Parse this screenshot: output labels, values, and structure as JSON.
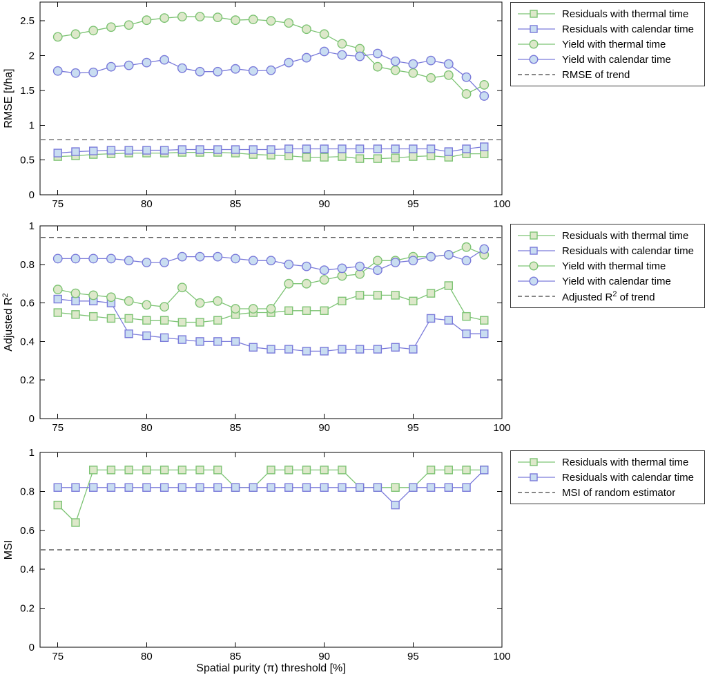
{
  "figure": {
    "xlabel": "Spatial purity (π) threshold [%]",
    "background": "#ffffff",
    "axis_color": "#000000",
    "colors": {
      "green_line": "#7cc373",
      "blue_line": "#7a7ada",
      "green_marker_fill": "#dde8ca",
      "blue_marker_fill": "#c9ddf1",
      "trend_dash": "#3f3f3f"
    }
  },
  "chart_data": [
    {
      "type": "line",
      "name": "rmse",
      "ylabel": "RMSE [t/ha]",
      "xlabel": "",
      "xlim": [
        74,
        100
      ],
      "ylim": [
        0,
        2.77
      ],
      "xticks": [
        75,
        80,
        85,
        90,
        95,
        100
      ],
      "yticks": [
        0,
        0.5,
        1,
        1.5,
        2,
        2.5
      ],
      "grid": false,
      "legend_position": "outside-right",
      "x": [
        75,
        76,
        77,
        78,
        79,
        80,
        81,
        82,
        83,
        84,
        85,
        86,
        87,
        88,
        89,
        90,
        91,
        92,
        93,
        94,
        95,
        96,
        97,
        98,
        99
      ],
      "series": [
        {
          "name": "Residuals with thermal time",
          "color": "green",
          "marker": "square",
          "values": [
            0.55,
            0.56,
            0.58,
            0.59,
            0.6,
            0.6,
            0.6,
            0.61,
            0.61,
            0.61,
            0.6,
            0.58,
            0.57,
            0.56,
            0.54,
            0.54,
            0.55,
            0.52,
            0.52,
            0.53,
            0.55,
            0.56,
            0.54,
            0.59,
            0.59
          ]
        },
        {
          "name": "Residuals with calendar time",
          "color": "blue",
          "marker": "square",
          "values": [
            0.6,
            0.62,
            0.63,
            0.64,
            0.64,
            0.64,
            0.64,
            0.65,
            0.65,
            0.65,
            0.65,
            0.65,
            0.65,
            0.66,
            0.66,
            0.66,
            0.66,
            0.66,
            0.66,
            0.66,
            0.66,
            0.66,
            0.62,
            0.66,
            0.69
          ]
        },
        {
          "name": "Yield with thermal time",
          "color": "green",
          "marker": "circle",
          "values": [
            2.27,
            2.31,
            2.36,
            2.41,
            2.44,
            2.51,
            2.54,
            2.56,
            2.56,
            2.55,
            2.51,
            2.52,
            2.5,
            2.47,
            2.38,
            2.31,
            2.17,
            2.1,
            1.84,
            1.79,
            1.75,
            1.68,
            1.72,
            1.45,
            1.58
          ]
        },
        {
          "name": "Yield with calendar time",
          "color": "blue",
          "marker": "circle",
          "values": [
            1.78,
            1.75,
            1.76,
            1.84,
            1.86,
            1.9,
            1.94,
            1.82,
            1.77,
            1.77,
            1.81,
            1.78,
            1.79,
            1.9,
            1.97,
            2.06,
            2.01,
            1.99,
            2.03,
            1.92,
            1.88,
            1.93,
            1.88,
            1.69,
            1.42
          ]
        }
      ],
      "ref_line": {
        "value": 0.79,
        "label": "RMSE of trend"
      }
    },
    {
      "type": "line",
      "name": "adjusted-r2",
      "ylabel": "Adjusted R²",
      "xlabel": "",
      "xlim": [
        74,
        100
      ],
      "ylim": [
        0,
        1
      ],
      "xticks": [
        75,
        80,
        85,
        90,
        95,
        100
      ],
      "yticks": [
        0,
        0.2,
        0.4,
        0.6,
        0.8,
        1
      ],
      "grid": false,
      "legend_position": "outside-right",
      "x": [
        75,
        76,
        77,
        78,
        79,
        80,
        81,
        82,
        83,
        84,
        85,
        86,
        87,
        88,
        89,
        90,
        91,
        92,
        93,
        94,
        95,
        96,
        97,
        98,
        99
      ],
      "series": [
        {
          "name": "Residuals with thermal time",
          "color": "green",
          "marker": "square",
          "values": [
            0.55,
            0.54,
            0.53,
            0.52,
            0.52,
            0.51,
            0.51,
            0.5,
            0.5,
            0.51,
            0.54,
            0.55,
            0.55,
            0.56,
            0.56,
            0.56,
            0.61,
            0.64,
            0.64,
            0.64,
            0.61,
            0.65,
            0.69,
            0.53,
            0.51
          ]
        },
        {
          "name": "Residuals with calendar time",
          "color": "blue",
          "marker": "square",
          "values": [
            0.62,
            0.61,
            0.61,
            0.6,
            0.44,
            0.43,
            0.42,
            0.41,
            0.4,
            0.4,
            0.4,
            0.37,
            0.36,
            0.36,
            0.35,
            0.35,
            0.36,
            0.36,
            0.36,
            0.37,
            0.36,
            0.52,
            0.51,
            0.44,
            0.44
          ]
        },
        {
          "name": "Yield with thermal time",
          "color": "green",
          "marker": "circle",
          "values": [
            0.67,
            0.65,
            0.64,
            0.63,
            0.61,
            0.59,
            0.58,
            0.68,
            0.6,
            0.61,
            0.57,
            0.57,
            0.57,
            0.7,
            0.7,
            0.72,
            0.74,
            0.75,
            0.82,
            0.82,
            0.84,
            0.84,
            0.85,
            0.89,
            0.85
          ]
        },
        {
          "name": "Yield with calendar time",
          "color": "blue",
          "marker": "circle",
          "values": [
            0.83,
            0.83,
            0.83,
            0.83,
            0.82,
            0.81,
            0.81,
            0.84,
            0.84,
            0.84,
            0.83,
            0.82,
            0.82,
            0.8,
            0.79,
            0.77,
            0.78,
            0.79,
            0.77,
            0.81,
            0.82,
            0.84,
            0.85,
            0.82,
            0.88
          ]
        }
      ],
      "ref_line": {
        "value": 0.94,
        "label": "Adjusted R² of trend"
      }
    },
    {
      "type": "line",
      "name": "msi",
      "ylabel": "MSI",
      "xlabel": "Spatial purity (π) threshold [%]",
      "xlim": [
        74,
        100
      ],
      "ylim": [
        0,
        1
      ],
      "xticks": [
        75,
        80,
        85,
        90,
        95,
        100
      ],
      "yticks": [
        0,
        0.2,
        0.4,
        0.6,
        0.8,
        1
      ],
      "grid": false,
      "legend_position": "outside-right",
      "x": [
        75,
        76,
        77,
        78,
        79,
        80,
        81,
        82,
        83,
        84,
        85,
        86,
        87,
        88,
        89,
        90,
        91,
        92,
        93,
        94,
        95,
        96,
        97,
        98,
        99
      ],
      "series": [
        {
          "name": "Residuals with thermal time",
          "color": "green",
          "marker": "square",
          "values": [
            0.73,
            0.64,
            0.91,
            0.91,
            0.91,
            0.91,
            0.91,
            0.91,
            0.91,
            0.91,
            0.82,
            0.82,
            0.91,
            0.91,
            0.91,
            0.91,
            0.91,
            0.82,
            0.82,
            0.82,
            0.82,
            0.91,
            0.91,
            0.91,
            0.91
          ]
        },
        {
          "name": "Residuals with calendar time",
          "color": "blue",
          "marker": "square",
          "values": [
            0.82,
            0.82,
            0.82,
            0.82,
            0.82,
            0.82,
            0.82,
            0.82,
            0.82,
            0.82,
            0.82,
            0.82,
            0.82,
            0.82,
            0.82,
            0.82,
            0.82,
            0.82,
            0.82,
            0.73,
            0.82,
            0.82,
            0.82,
            0.82,
            0.91
          ]
        }
      ],
      "ref_line": {
        "value": 0.5,
        "label": "MSI of random estimator"
      }
    }
  ]
}
